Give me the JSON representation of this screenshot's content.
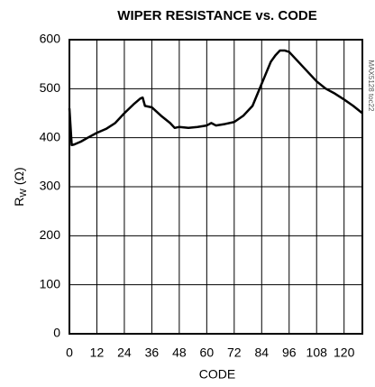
{
  "chart_data": {
    "type": "line",
    "title": "WIPER RESISTANCE vs. CODE",
    "xlabel": "CODE",
    "ylabel": "R",
    "ylabel_sub": "W",
    "ylabel_unit": "(Ω)",
    "annotation": "MAX5128 toc22",
    "x": [
      0,
      1,
      2,
      5,
      8,
      12,
      16,
      20,
      24,
      28,
      31,
      32,
      33,
      36,
      40,
      44,
      46,
      48,
      52,
      56,
      60,
      62,
      64,
      68,
      72,
      76,
      80,
      84,
      88,
      90,
      92,
      94,
      96,
      100,
      104,
      108,
      112,
      116,
      120,
      124,
      128
    ],
    "series": [
      {
        "color": "#000000",
        "values": [
          460,
          385,
          386,
          392,
          400,
          410,
          418,
          430,
          450,
          468,
          480,
          482,
          465,
          462,
          445,
          430,
          420,
          422,
          420,
          422,
          425,
          430,
          425,
          428,
          432,
          445,
          465,
          510,
          555,
          568,
          578,
          578,
          575,
          555,
          535,
          515,
          500,
          490,
          478,
          465,
          450
        ]
      }
    ],
    "xlim": [
      0,
      128
    ],
    "xticks": [
      0,
      12,
      24,
      36,
      48,
      60,
      72,
      84,
      96,
      108,
      120
    ],
    "ylim": [
      0,
      600
    ],
    "yticks": [
      0,
      100,
      200,
      300,
      400,
      500,
      600
    ],
    "grid": true
  }
}
